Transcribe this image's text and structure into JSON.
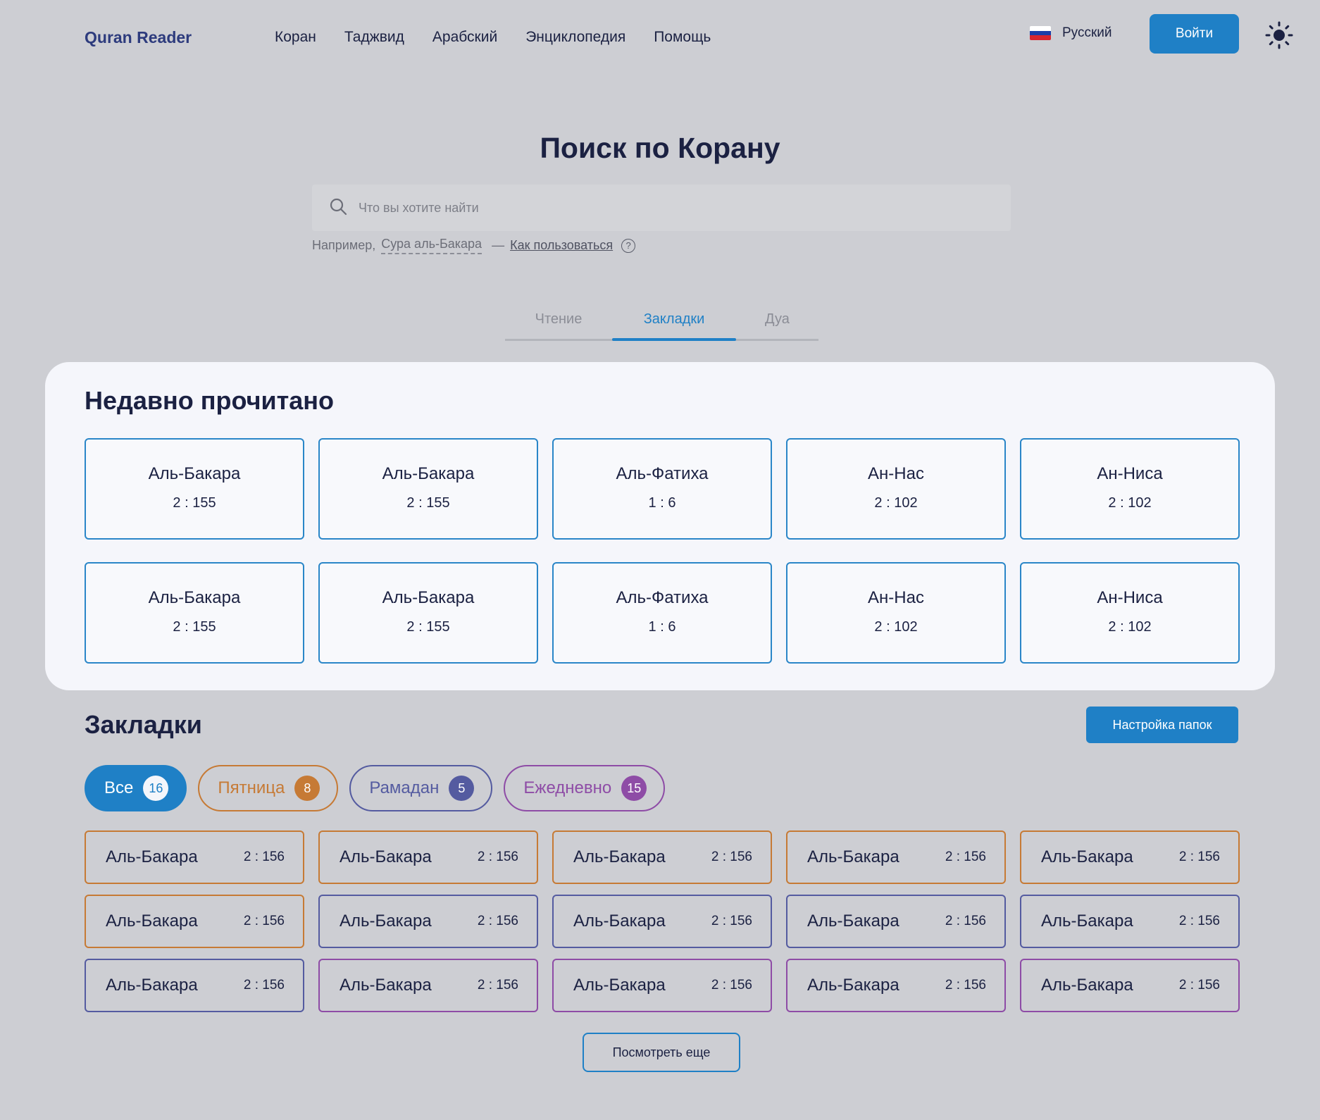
{
  "header": {
    "logo": "Quran Reader",
    "nav": [
      "Коран",
      "Таджвид",
      "Арабский",
      "Энциклопедия",
      "Помощь"
    ],
    "language": "Русский",
    "login_label": "Войти",
    "theme_icon": "sun-icon"
  },
  "search": {
    "title": "Поиск по Корану",
    "placeholder": "Что вы хотите найти",
    "hint_prefix": "Например,",
    "hint_example": "Сура аль-Бакара",
    "hint_dash": "—",
    "hint_link": "Как пользоваться",
    "hint_icon": "?"
  },
  "tabs": [
    {
      "label": "Чтение",
      "active": false
    },
    {
      "label": "Закладки",
      "active": true
    },
    {
      "label": "Дуа",
      "active": false
    }
  ],
  "recent": {
    "title": "Недавно прочитано",
    "items": [
      {
        "name": "Аль-Бакара",
        "ref": "2 : 155"
      },
      {
        "name": "Аль-Бакара",
        "ref": "2 : 155"
      },
      {
        "name": "Аль-Фатиха",
        "ref": "1 : 6"
      },
      {
        "name": "Ан-Нас",
        "ref": "2 : 102"
      },
      {
        "name": "Ан-Ниса",
        "ref": "2 : 102"
      },
      {
        "name": "Аль-Бакара",
        "ref": "2 : 155"
      },
      {
        "name": "Аль-Бакара",
        "ref": "2 : 155"
      },
      {
        "name": "Аль-Фатиха",
        "ref": "1 : 6"
      },
      {
        "name": "Ан-Нас",
        "ref": "2 : 102"
      },
      {
        "name": "Ан-Ниса",
        "ref": "2 : 102"
      }
    ]
  },
  "bookmarks": {
    "title": "Закладки",
    "folders_button": "Настройка папок",
    "filters": [
      {
        "label": "Все",
        "count": "16",
        "color": "#1f80c6",
        "active": true
      },
      {
        "label": "Пятница",
        "count": "8",
        "color": "#c67a35",
        "active": false
      },
      {
        "label": "Рамадан",
        "count": "5",
        "color": "#545ba0",
        "active": false
      },
      {
        "label": "Ежедневно",
        "count": "15",
        "color": "#8e4ca6",
        "active": false
      }
    ],
    "items": [
      {
        "name": "Аль-Бакара",
        "ref": "2 : 156",
        "color": "#c67a35"
      },
      {
        "name": "Аль-Бакара",
        "ref": "2 : 156",
        "color": "#c67a35"
      },
      {
        "name": "Аль-Бакара",
        "ref": "2 : 156",
        "color": "#c67a35"
      },
      {
        "name": "Аль-Бакара",
        "ref": "2 : 156",
        "color": "#c67a35"
      },
      {
        "name": "Аль-Бакара",
        "ref": "2 : 156",
        "color": "#c67a35"
      },
      {
        "name": "Аль-Бакара",
        "ref": "2 : 156",
        "color": "#c67a35"
      },
      {
        "name": "Аль-Бакара",
        "ref": "2 : 156",
        "color": "#545ba0"
      },
      {
        "name": "Аль-Бакара",
        "ref": "2 : 156",
        "color": "#545ba0"
      },
      {
        "name": "Аль-Бакара",
        "ref": "2 : 156",
        "color": "#545ba0"
      },
      {
        "name": "Аль-Бакара",
        "ref": "2 : 156",
        "color": "#545ba0"
      },
      {
        "name": "Аль-Бакара",
        "ref": "2 : 156",
        "color": "#545ba0"
      },
      {
        "name": "Аль-Бакара",
        "ref": "2 : 156",
        "color": "#8e4ca6"
      },
      {
        "name": "Аль-Бакара",
        "ref": "2 : 156",
        "color": "#8e4ca6"
      },
      {
        "name": "Аль-Бакара",
        "ref": "2 : 156",
        "color": "#8e4ca6"
      },
      {
        "name": "Аль-Бакара",
        "ref": "2 : 156",
        "color": "#8e4ca6"
      }
    ],
    "more_label": "Посмотреть еще"
  },
  "colors": {
    "accent": "#1f80c6",
    "background": "#cdced3",
    "card": "#f5f6fb",
    "text": "#1b2142"
  }
}
